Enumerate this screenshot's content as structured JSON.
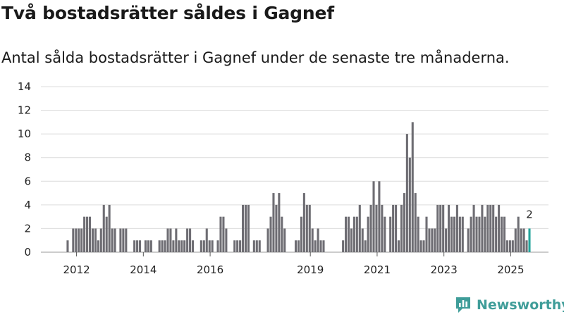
{
  "title": "Två bostadsrätter såldes i Gagnef",
  "subtitle": "Antal sålda bostadsrätter i Gagnef under de senaste tre månaderna.",
  "brand": {
    "name": "Newsworthy",
    "icon": "newsworthy-logo-icon"
  },
  "colors": {
    "bar": "#6e6d73",
    "highlight": "#23a39b",
    "grid": "#dcdcdc",
    "brand": "#3f9d99"
  },
  "chart_data": {
    "type": "bar",
    "title": "Två bostadsrätter såldes i Gagnef",
    "xlabel": "",
    "ylabel": "",
    "ylim": [
      0,
      14
    ],
    "y_ticks": [
      "0",
      "2",
      "4",
      "6",
      "8",
      "10",
      "12",
      "14"
    ],
    "x_ticks": [
      "2012",
      "2014",
      "2016",
      "2019",
      "2021",
      "2023",
      "2025"
    ],
    "x_tick_positions": [
      2012.1,
      2014.1,
      2016.1,
      2019.1,
      2021.1,
      2023.1,
      2025.1
    ],
    "x_start": 2011.75,
    "x_step": 0.0833,
    "grid": true,
    "legend": "none",
    "values": [
      0,
      1,
      0,
      2,
      2,
      2,
      2,
      3,
      3,
      3,
      2,
      2,
      1,
      2,
      4,
      3,
      4,
      2,
      2,
      0,
      2,
      2,
      2,
      0,
      0,
      1,
      1,
      1,
      0,
      1,
      1,
      1,
      0,
      0,
      1,
      1,
      1,
      2,
      2,
      1,
      2,
      1,
      1,
      1,
      2,
      2,
      1,
      0,
      0,
      1,
      1,
      2,
      1,
      1,
      0,
      1,
      3,
      3,
      2,
      0,
      0,
      1,
      1,
      1,
      4,
      4,
      4,
      0,
      1,
      1,
      1,
      0,
      0,
      2,
      3,
      5,
      4,
      5,
      3,
      2,
      0,
      0,
      0,
      1,
      1,
      3,
      5,
      4,
      4,
      2,
      1,
      2,
      1,
      1,
      0,
      0,
      0,
      0,
      0,
      0,
      1,
      3,
      3,
      2,
      3,
      3,
      4,
      2,
      1,
      3,
      4,
      6,
      4,
      6,
      4,
      3,
      0,
      3,
      4,
      4,
      1,
      4,
      5,
      10,
      8,
      11,
      5,
      3,
      1,
      1,
      3,
      2,
      2,
      2,
      4,
      4,
      4,
      2,
      4,
      3,
      3,
      4,
      3,
      3,
      0,
      2,
      3,
      4,
      3,
      3,
      4,
      3,
      4,
      4,
      4,
      3,
      4,
      3,
      3,
      1,
      1,
      1,
      2,
      3,
      2,
      2,
      1,
      2
    ],
    "highlight_last": true,
    "data_labels": [
      {
        "index": 167,
        "text": "2"
      }
    ]
  }
}
